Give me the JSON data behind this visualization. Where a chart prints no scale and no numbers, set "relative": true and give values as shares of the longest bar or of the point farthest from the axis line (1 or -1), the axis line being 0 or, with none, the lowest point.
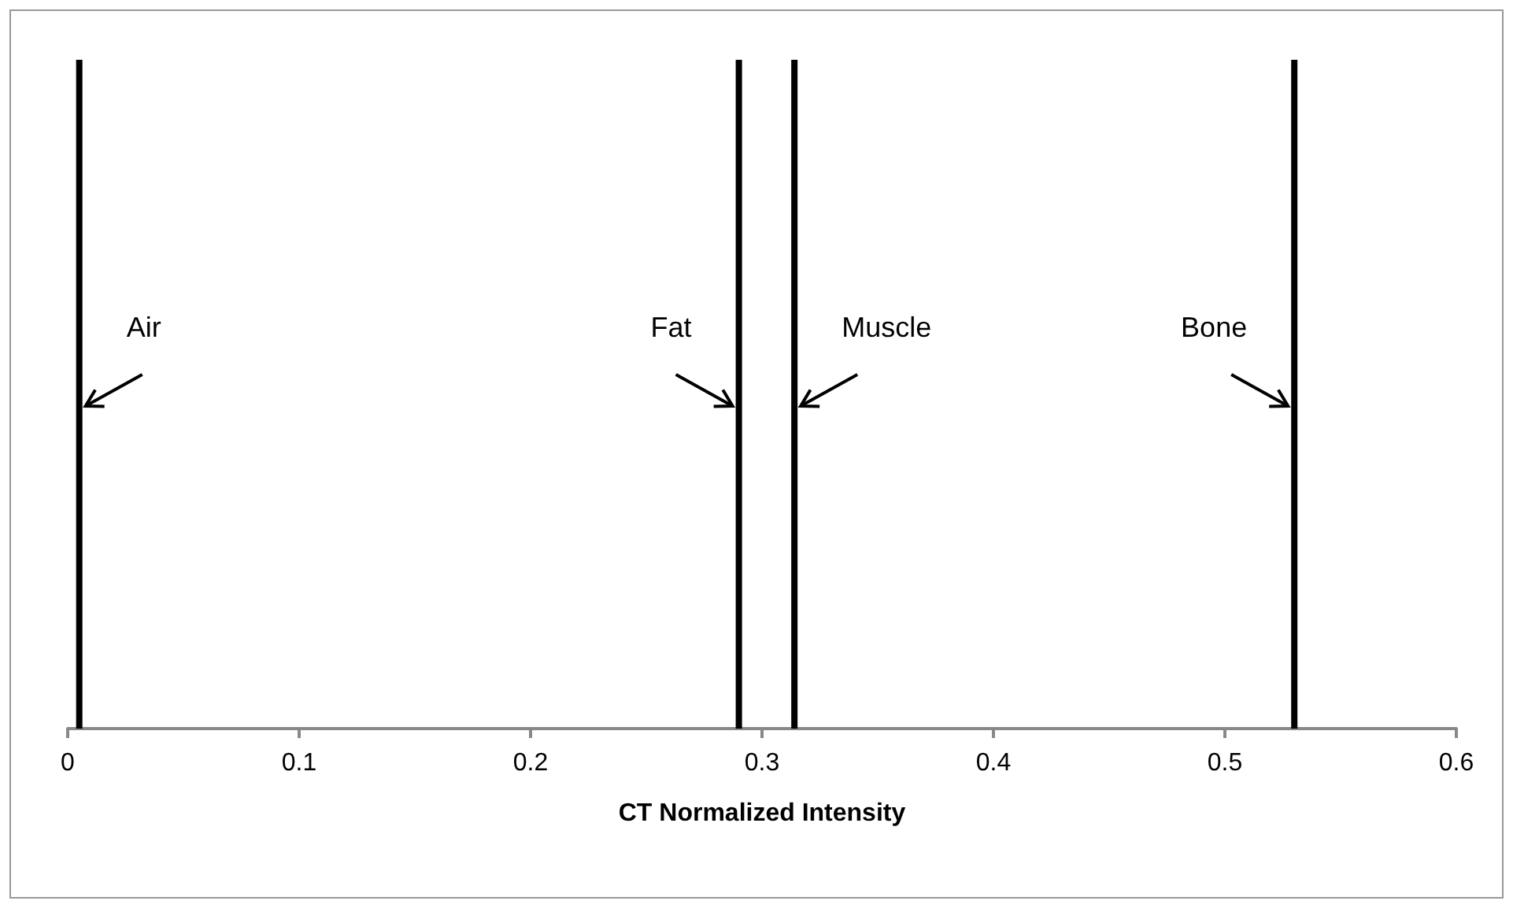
{
  "chart_data": {
    "type": "line",
    "relative": true,
    "xlabel": "CT Normalized Intensity",
    "xlim": [
      0,
      0.6
    ],
    "xticks": [
      0,
      0.1,
      0.2,
      0.3,
      0.4,
      0.5,
      0.6
    ],
    "line_style": "solid",
    "marker": "none",
    "series": [
      {
        "name": "Air",
        "color": "#000000",
        "x": [
          0.005,
          0.005
        ],
        "values": [
          0,
          1
        ]
      },
      {
        "name": "Fat",
        "color": "#000000",
        "x": [
          0.29,
          0.29
        ],
        "values": [
          0,
          1
        ]
      },
      {
        "name": "Muscle",
        "color": "#000000",
        "x": [
          0.314,
          0.314
        ],
        "values": [
          0,
          1
        ]
      },
      {
        "name": "Bone",
        "color": "#000000",
        "x": [
          0.53,
          0.53
        ],
        "values": [
          0,
          1
        ]
      }
    ]
  }
}
